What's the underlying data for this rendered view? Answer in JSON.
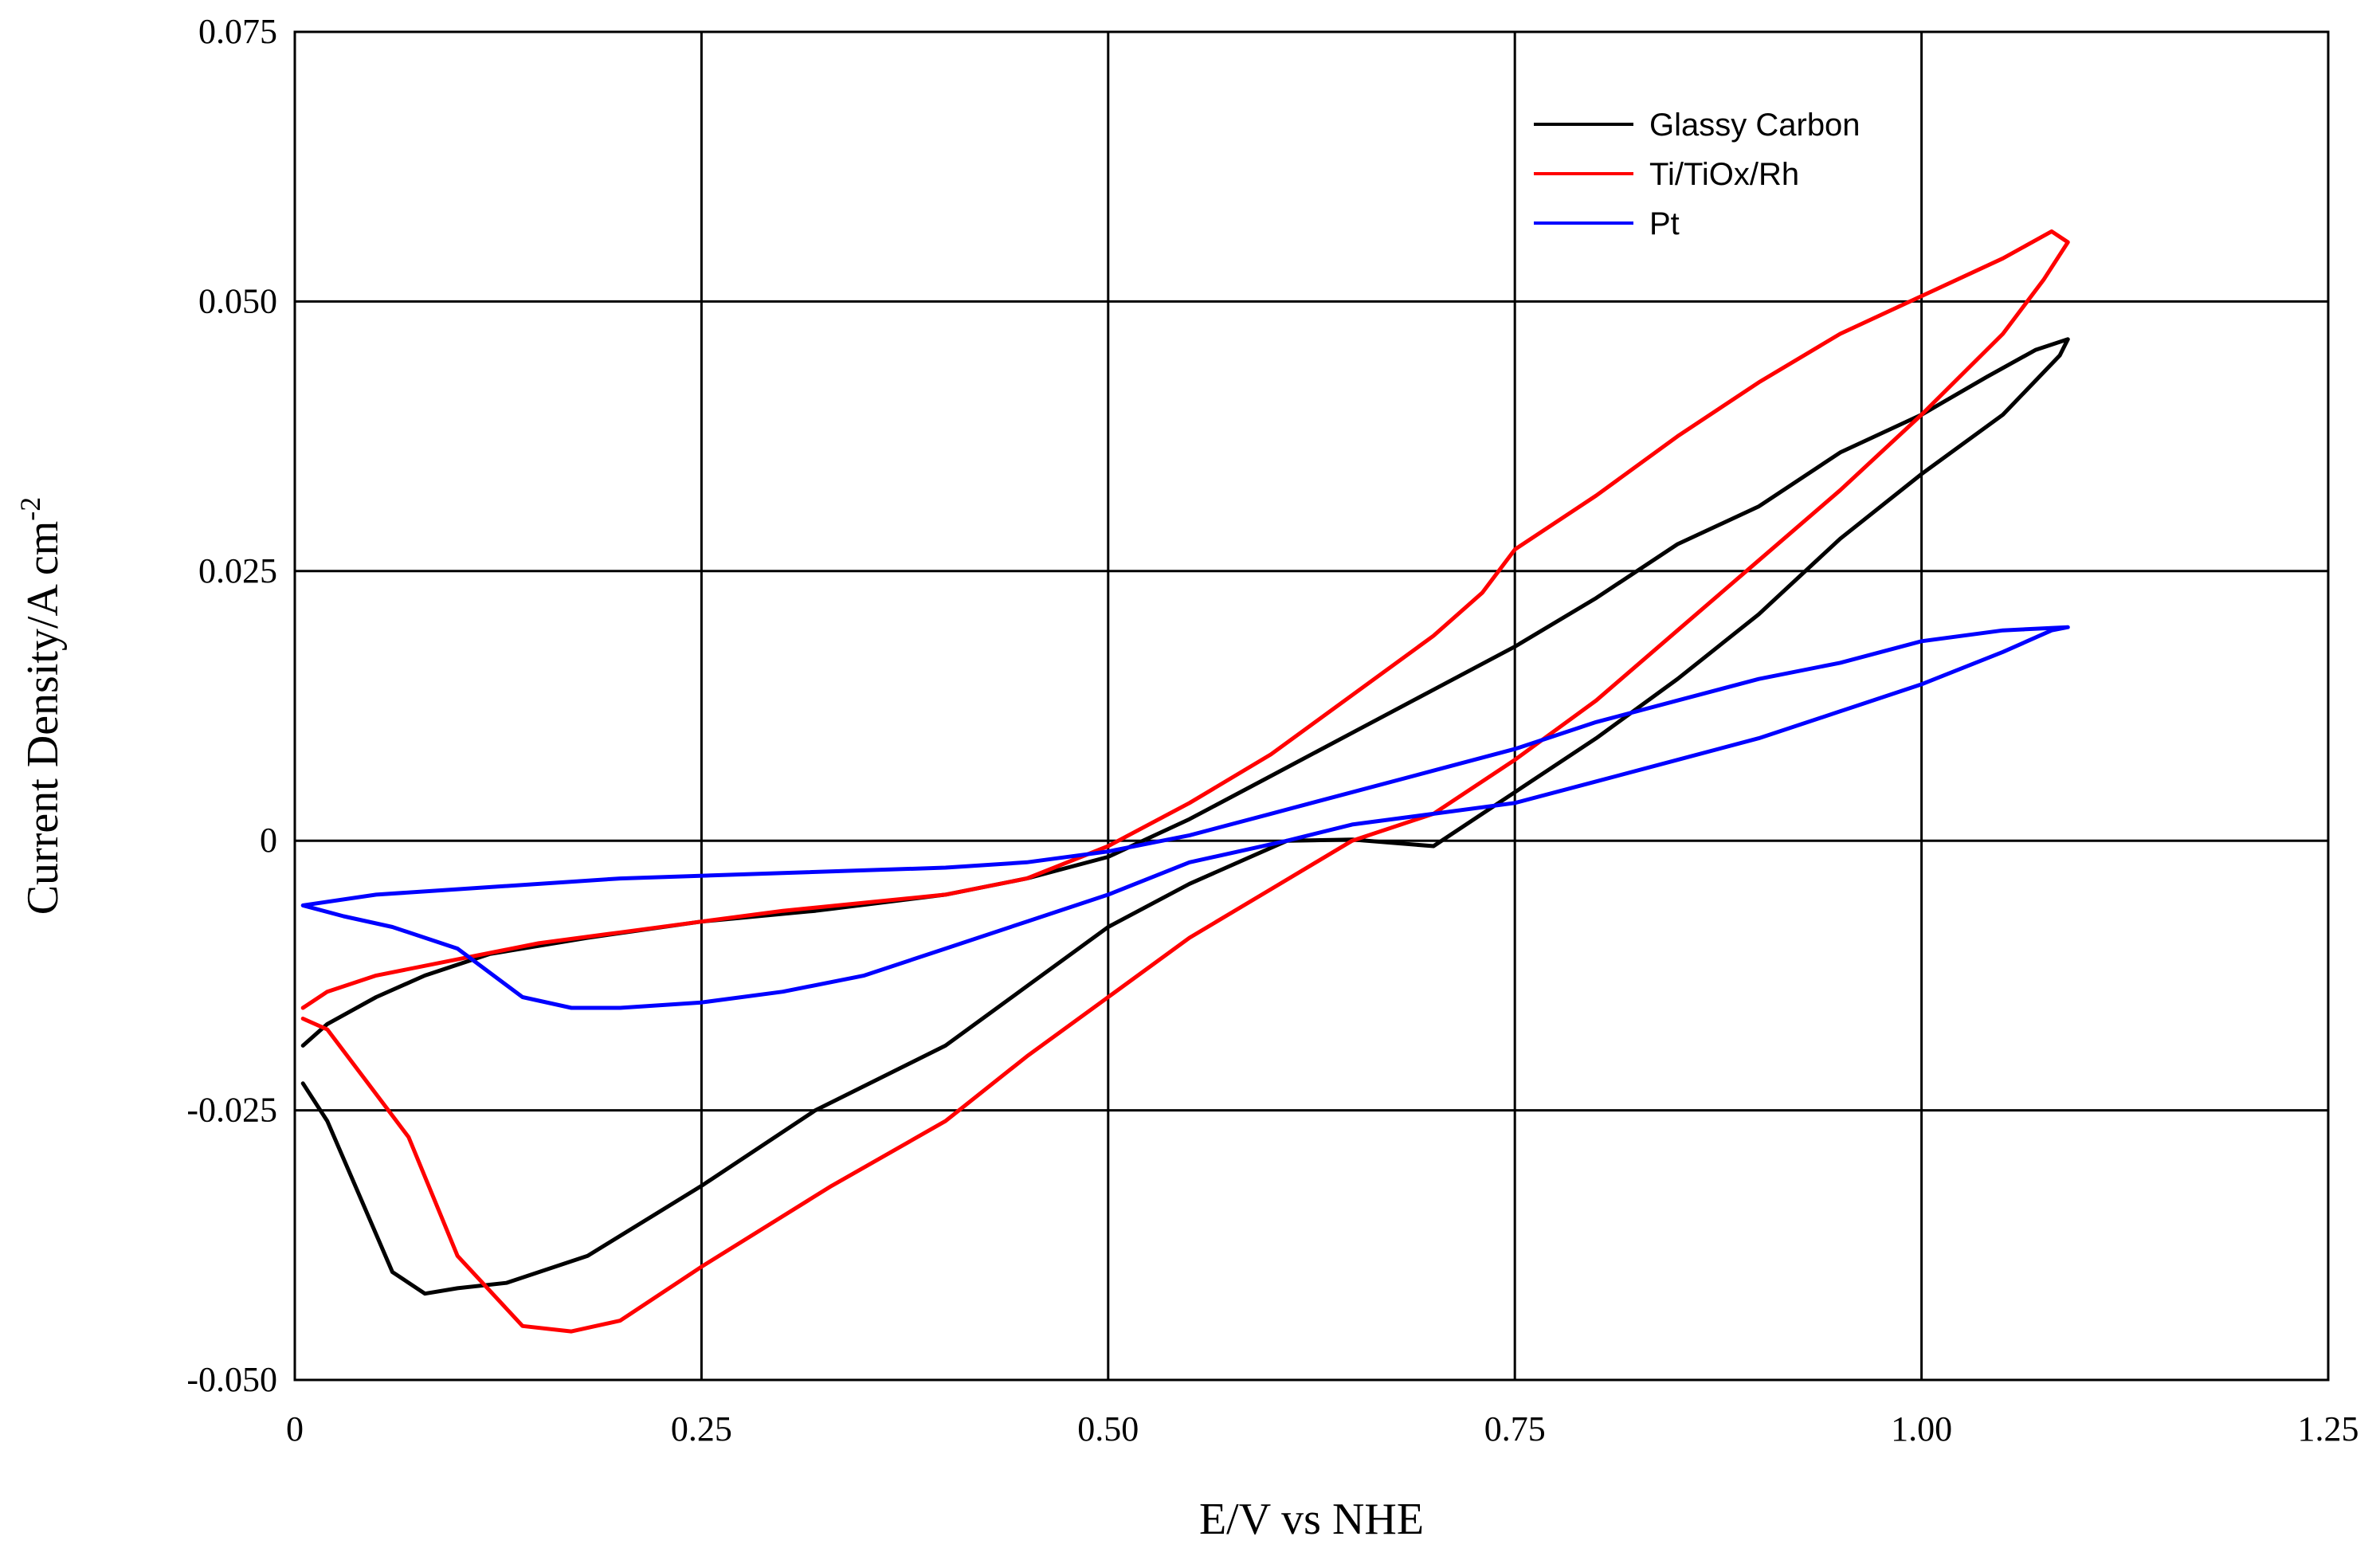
{
  "chart_data": {
    "type": "line",
    "title": "",
    "xlabel": "E/V vs NHE",
    "ylabel_main": "Current Density/A cm",
    "ylabel_superscript": "-2",
    "xlim": [
      0,
      1.25
    ],
    "ylim": [
      -0.05,
      0.075
    ],
    "xticks": [
      0,
      0.25,
      0.5,
      0.75,
      1.0,
      1.25
    ],
    "xtick_labels": [
      "0",
      "0.25",
      "0.50",
      "0.75",
      "1.00",
      "1.25"
    ],
    "yticks": [
      -0.05,
      -0.025,
      0,
      0.025,
      0.05,
      0.075
    ],
    "ytick_labels": [
      "-0.050",
      "-0.025",
      "0",
      "0.025",
      "0.050",
      "0.075"
    ],
    "grid": true,
    "legend_position": "top-right",
    "series": [
      {
        "name": "Glassy Carbon",
        "color": "#000000",
        "x": [
          0.005,
          0.02,
          0.05,
          0.08,
          0.12,
          0.18,
          0.25,
          0.32,
          0.4,
          0.45,
          0.5,
          0.55,
          0.6,
          0.65,
          0.7,
          0.75,
          0.8,
          0.85,
          0.9,
          0.95,
          1.0,
          1.04,
          1.07,
          1.09,
          1.085,
          1.05,
          1.0,
          0.95,
          0.9,
          0.85,
          0.8,
          0.75,
          0.7,
          0.65,
          0.61,
          0.55,
          0.5,
          0.45,
          0.4,
          0.32,
          0.25,
          0.18,
          0.13,
          0.1,
          0.08,
          0.06,
          0.04,
          0.02,
          0.005
        ],
        "y": [
          -0.019,
          -0.017,
          -0.0145,
          -0.0125,
          -0.0105,
          -0.009,
          -0.0075,
          -0.0065,
          -0.005,
          -0.0035,
          -0.0015,
          0.002,
          0.006,
          0.01,
          0.014,
          0.018,
          0.0225,
          0.0275,
          0.031,
          0.036,
          0.0395,
          0.043,
          0.0455,
          0.0465,
          0.045,
          0.0395,
          0.034,
          0.028,
          0.021,
          0.015,
          0.0095,
          0.0045,
          -0.0005,
          0.0001,
          0.0,
          -0.004,
          -0.008,
          -0.0135,
          -0.019,
          -0.025,
          -0.032,
          -0.0385,
          -0.041,
          -0.0415,
          -0.042,
          -0.04,
          -0.033,
          -0.026,
          -0.0225
        ]
      },
      {
        "name": "Ti/TiOx/Rh",
        "color": "#ff0000",
        "x": [
          0.005,
          0.02,
          0.05,
          0.1,
          0.15,
          0.2,
          0.25,
          0.3,
          0.4,
          0.45,
          0.5,
          0.55,
          0.6,
          0.65,
          0.7,
          0.73,
          0.75,
          0.8,
          0.85,
          0.9,
          0.95,
          1.0,
          1.05,
          1.08,
          1.09,
          1.075,
          1.05,
          1.0,
          0.95,
          0.9,
          0.85,
          0.8,
          0.75,
          0.7,
          0.65,
          0.6,
          0.55,
          0.5,
          0.45,
          0.4,
          0.33,
          0.25,
          0.2,
          0.17,
          0.14,
          0.1,
          0.07,
          0.04,
          0.02,
          0.005
        ],
        "y": [
          -0.0155,
          -0.014,
          -0.0125,
          -0.011,
          -0.0095,
          -0.0085,
          -0.0075,
          -0.0065,
          -0.005,
          -0.0035,
          -0.0005,
          0.0035,
          0.008,
          0.0135,
          0.019,
          0.023,
          0.027,
          0.032,
          0.0375,
          0.0425,
          0.047,
          0.0505,
          0.054,
          0.0565,
          0.0555,
          0.052,
          0.047,
          0.0395,
          0.0325,
          0.026,
          0.0195,
          0.013,
          0.0075,
          0.0025,
          0.0,
          -0.0045,
          -0.009,
          -0.0145,
          -0.02,
          -0.026,
          -0.032,
          -0.0395,
          -0.0445,
          -0.0455,
          -0.045,
          -0.0385,
          -0.0275,
          -0.0215,
          -0.0175,
          -0.0165
        ]
      },
      {
        "name": "Pt",
        "color": "#0000ff",
        "x": [
          0.005,
          0.05,
          0.1,
          0.2,
          0.3,
          0.4,
          0.45,
          0.5,
          0.55,
          0.6,
          0.65,
          0.7,
          0.75,
          0.8,
          0.85,
          0.9,
          0.95,
          1.0,
          1.05,
          1.09,
          1.08,
          1.05,
          1.0,
          0.95,
          0.9,
          0.85,
          0.8,
          0.75,
          0.7,
          0.65,
          0.61,
          0.55,
          0.5,
          0.45,
          0.4,
          0.35,
          0.3,
          0.25,
          0.2,
          0.17,
          0.14,
          0.1,
          0.06,
          0.03,
          0.005
        ],
        "y": [
          -0.006,
          -0.005,
          -0.0045,
          -0.0035,
          -0.003,
          -0.0025,
          -0.002,
          -0.001,
          0.0005,
          0.0025,
          0.0045,
          0.0065,
          0.0085,
          0.011,
          0.013,
          0.015,
          0.0165,
          0.0185,
          0.0195,
          0.0198,
          0.0195,
          0.0175,
          0.0145,
          0.012,
          0.0095,
          0.0075,
          0.0055,
          0.0035,
          0.0025,
          0.0015,
          0.0,
          -0.002,
          -0.005,
          -0.0075,
          -0.01,
          -0.0125,
          -0.014,
          -0.015,
          -0.0155,
          -0.0155,
          -0.0145,
          -0.01,
          -0.008,
          -0.007,
          -0.006
        ]
      }
    ]
  }
}
